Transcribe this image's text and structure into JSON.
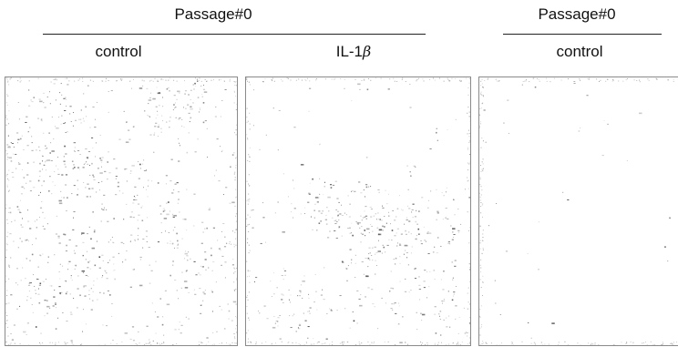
{
  "figure": {
    "groups": [
      {
        "title": "Passage#0",
        "panels": [
          {
            "label": "control",
            "label_suffix": ""
          },
          {
            "label": "IL-1",
            "label_suffix": "β"
          }
        ]
      },
      {
        "title": "Passage#0",
        "panels": [
          {
            "label": "control",
            "label_suffix": ""
          }
        ]
      }
    ]
  }
}
